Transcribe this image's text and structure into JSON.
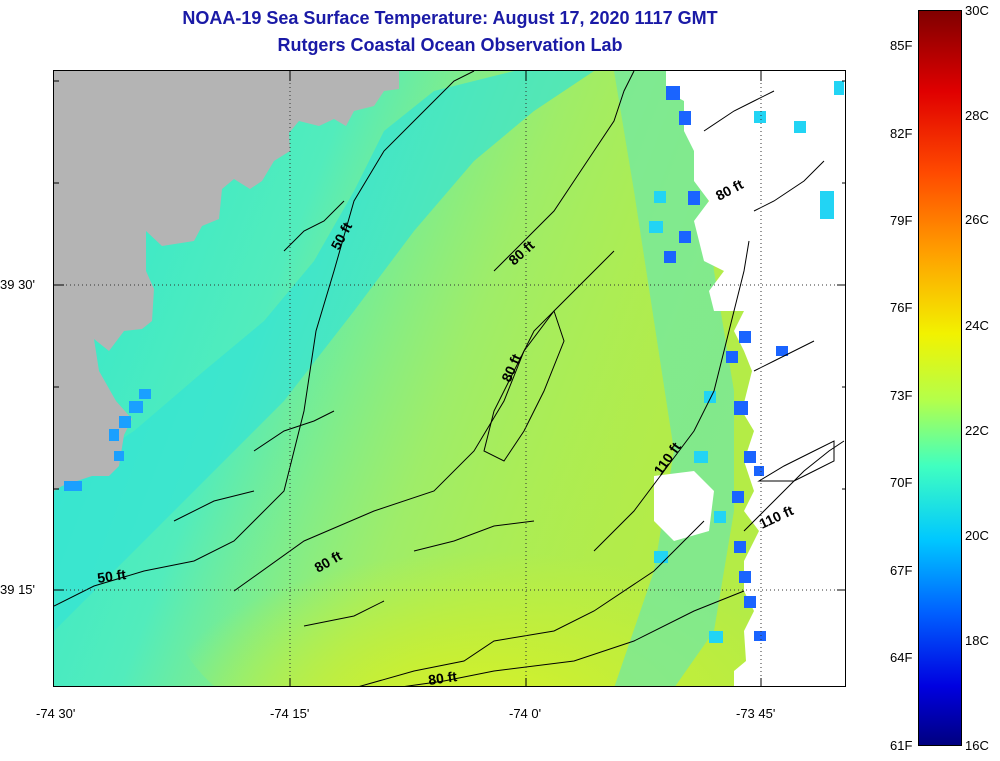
{
  "title_line1": "NOAA-19 Sea Surface Temperature:  August 17, 2020 1117 GMT",
  "title_line2": "Rutgers Coastal Ocean Observation Lab",
  "latitude_labels": [
    "39 30'",
    "39 15'"
  ],
  "longitude_labels": [
    "-74 30'",
    "-74 15'",
    "-74 0'",
    "-73 45'"
  ],
  "contour_labels": [
    "50 ft",
    "50 ft",
    "80 ft",
    "80 ft",
    "80 ft",
    "80 ft",
    "80 ft",
    "110 ft",
    "110 ft"
  ],
  "colorbar": {
    "fahrenheit_labels": [
      "85F",
      "82F",
      "79F",
      "76F",
      "73F",
      "70F",
      "67F",
      "64F",
      "61F"
    ],
    "celsius_labels": [
      "30C",
      "28C",
      "26C",
      "24C",
      "22C",
      "20C",
      "18C",
      "16C"
    ],
    "range_celsius": [
      16,
      30
    ]
  },
  "colors": {
    "land": "#b4b4b4",
    "cloud_mask": "#ffffff",
    "title": "#1a1aa6"
  }
}
